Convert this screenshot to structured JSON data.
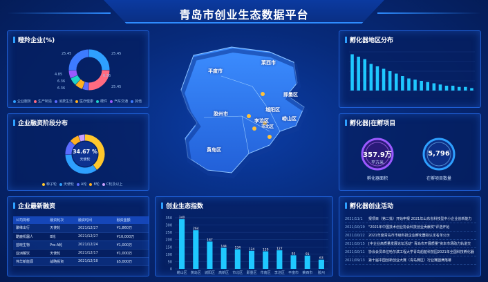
{
  "header": {
    "title": "青岛市创业生态数据平台"
  },
  "awards": {
    "title": "瞪羚企业(%)",
    "labels": [
      "25.45",
      "25.45",
      "4.85",
      "6.36",
      "6.36",
      "6.36",
      "25.45"
    ],
    "legend": [
      {
        "name": "企业服务",
        "color": "#2ea0ff"
      },
      {
        "name": "生产制造",
        "color": "#ff6b81"
      },
      {
        "name": "消费生活",
        "color": "#5b6cff"
      },
      {
        "name": "医疗健康",
        "color": "#ffb020"
      },
      {
        "name": "硬件",
        "color": "#1fd1c8"
      },
      {
        "name": "汽车交通",
        "color": "#9b59ff"
      },
      {
        "name": "其他",
        "color": "#3d7bff"
      }
    ],
    "values": [
      25.45,
      25.45,
      4.85,
      6.36,
      6.36,
      6.36,
      25.45
    ]
  },
  "finance_stage": {
    "title": "企业融资阶段分布",
    "center_value": "34.67 %",
    "center_label": "天使轮",
    "legend": [
      {
        "name": "种子轮",
        "color": "#ffc72c"
      },
      {
        "name": "天使轮",
        "color": "#2ea0ff"
      },
      {
        "name": "A轮",
        "color": "#5b6cff"
      },
      {
        "name": "B轮",
        "color": "#ffb020"
      },
      {
        "name": "C轮及以上",
        "color": "#c9a0ff"
      }
    ],
    "values": [
      40,
      34.67,
      12,
      8,
      5.33
    ]
  },
  "latest_finance": {
    "title": "企业最新融资",
    "columns": [
      "公司简称",
      "融资轮次",
      "融资时间",
      "融资金额"
    ],
    "rows": [
      [
        "聚维出行",
        "天使轮",
        "2021/12/27",
        "¥1,860万"
      ],
      [
        "酷鹿机器人",
        "B轮",
        "2021/12/27",
        "¥10,000万"
      ],
      [
        "蓝晓生物",
        "Pre-A轮",
        "2021/12/24",
        "¥1,000万"
      ],
      [
        "亚洲餐饮",
        "天使轮",
        "2021/12/17",
        "¥1,000万"
      ],
      [
        "伟华新能源",
        "战略投资",
        "2021/12/10",
        "$5,000万"
      ]
    ]
  },
  "map": {
    "labels": [
      "平度市",
      "莱西市",
      "即墨区",
      "胶州市",
      "城阳区",
      "李沧区",
      "崂山区",
      "市北区",
      "黄岛区"
    ]
  },
  "incubator_region": {
    "title": "孵化器地区分布",
    "chart_data": {
      "type": "bar",
      "values": [
        30,
        28,
        26,
        22,
        20,
        18,
        16,
        14,
        12,
        10,
        9,
        8,
        7,
        6,
        5,
        4,
        4,
        3,
        3,
        2
      ],
      "ylim": [
        0,
        32
      ]
    }
  },
  "incubator_projects": {
    "title": "孵化器|在孵项目",
    "area_value": "357.9万",
    "area_unit": "平方米",
    "area_label": "孵化器面积",
    "count_value": "5,796",
    "count_label": "在孵项目数量"
  },
  "eco_index": {
    "title": "创业生态指数",
    "chart_data": {
      "type": "bar",
      "categories": [
        "崂山区",
        "黄岛区",
        "城阳区",
        "高新区",
        "市北区",
        "即墨区",
        "市南区",
        "李沧区",
        "平度市",
        "莱西市",
        "胶州"
      ],
      "values": [
        340,
        264,
        187,
        144,
        134,
        124,
        120,
        127,
        93,
        91,
        63
      ],
      "yticks": [
        "350",
        "300",
        "250",
        "200",
        "150",
        "100",
        "50",
        "0"
      ],
      "ylim": [
        0,
        350
      ]
    }
  },
  "activities": {
    "title": "孵化器创业活动",
    "rows": [
      [
        "2021/11/1",
        "报项目（第二批）开始申报 2021年山东省科技型中小企业创新能力"
      ],
      [
        "2021/10/29",
        "\"2021年中国技术创业协会科技创业贡献奖\"评选开始"
      ],
      [
        "2021/10/22",
        "2021年度青岛市市级科技企业孵化器拟认定名单公示"
      ],
      [
        "2021/10/15",
        "[中企业高质量发展论坛活动\" 青岛市开展质量\"资本市场助力轨道交"
      ],
      [
        "2021/10/11",
        "协会会员单位哈尔滨工程大学青岛船舶科技园2021年全国科技孵化器"
      ],
      [
        "2021/09/13",
        "第十届中国创新创业大赛（青岛赛区）行业赛圆满落幕"
      ]
    ]
  }
}
